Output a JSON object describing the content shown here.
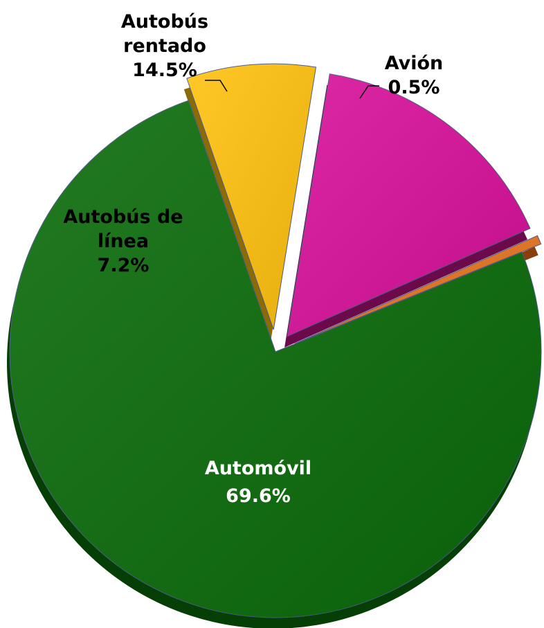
{
  "chart_data": {
    "type": "pie",
    "style": "3d-exploded",
    "slices": [
      {
        "name": "Automóvil",
        "value": 69.6,
        "value_label": "69.6%",
        "label_lines": [
          "Automóvil"
        ],
        "color": "#0a6b0a",
        "side_color": "#053f05",
        "text_color": "#ffffff"
      },
      {
        "name": "Autobús de línea",
        "value": 7.2,
        "value_label": "7.2%",
        "label_lines": [
          "Autobús de",
          "línea"
        ],
        "color": "#ffc20e",
        "side_color": "#8c6a05",
        "text_color": "#000000"
      },
      {
        "name": "Autobús rentado",
        "value": 14.5,
        "value_label": "14.5%",
        "label_lines": [
          "Autobús",
          "rentado"
        ],
        "color": "#d8109a",
        "side_color": "#6a0a4a",
        "text_color": "#000000"
      },
      {
        "name": "Avión",
        "value": 0.5,
        "value_label": "0.5%",
        "label_lines": [
          "Avión"
        ],
        "color": "#e8741e",
        "side_color": "#8a3e0a",
        "text_color": "#000000"
      }
    ],
    "legend": "none"
  }
}
